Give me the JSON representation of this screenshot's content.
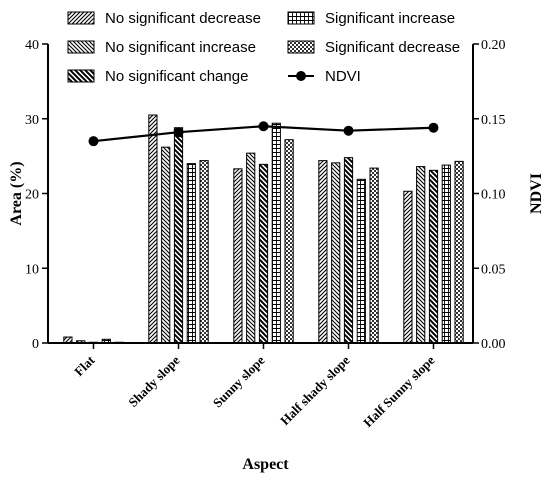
{
  "chart_data": {
    "type": "bar",
    "xlabel": "Aspect",
    "ylabel": "Area (%)",
    "y2label": "NDVI",
    "categories": [
      "Flat",
      "Shady slope",
      "Sunny slope",
      "Half shady slope",
      "Half Sunny slope"
    ],
    "ylim": [
      0,
      40
    ],
    "yticks": [
      "0",
      "10",
      "20",
      "30",
      "40"
    ],
    "y2lim": [
      0,
      0.2
    ],
    "y2ticks": [
      "0.00",
      "0.05",
      "0.10",
      "0.15",
      "0.20"
    ],
    "series": [
      {
        "name": "No significant decrease",
        "pattern": "diag-right",
        "values": [
          0.8,
          30.5,
          23.3,
          24.4,
          20.3
        ]
      },
      {
        "name": "No significant increase",
        "pattern": "diag-left",
        "values": [
          0.3,
          26.2,
          25.4,
          24.1,
          23.6
        ]
      },
      {
        "name": "No significant change",
        "pattern": "diag-bold",
        "values": [
          0.1,
          28.8,
          23.9,
          24.8,
          23.1
        ]
      },
      {
        "name": "Significant increase",
        "pattern": "grid",
        "values": [
          0.5,
          24.0,
          29.4,
          21.9,
          23.8
        ]
      },
      {
        "name": "Significant decrease",
        "pattern": "checker",
        "values": [
          0.1,
          24.4,
          27.2,
          23.4,
          24.3
        ]
      }
    ],
    "line_series": {
      "name": "NDVI",
      "values": [
        0.135,
        0.141,
        0.145,
        0.142,
        0.144
      ]
    },
    "legend_position": "top",
    "grid": false
  }
}
